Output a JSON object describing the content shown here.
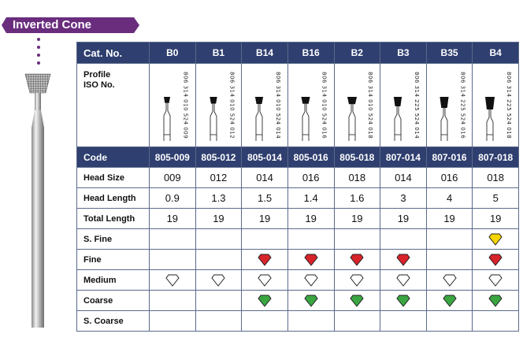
{
  "title": "Inverted Cone",
  "table": {
    "cat_label": "Cat. No.",
    "profile_label_1": "Profile",
    "profile_label_2": "ISO No.",
    "code_label": "Code",
    "columns": [
      {
        "cat": "B0",
        "iso": "806 314 010 524 009",
        "code": "805-009",
        "head_size": "009",
        "head_length": "0.9",
        "total_length": "19"
      },
      {
        "cat": "B1",
        "iso": "806 314 010 524 012",
        "code": "805-012",
        "head_size": "012",
        "head_length": "1.3",
        "total_length": "19"
      },
      {
        "cat": "B14",
        "iso": "806 314 010 524 014",
        "code": "805-014",
        "head_size": "014",
        "head_length": "1.5",
        "total_length": "19"
      },
      {
        "cat": "B16",
        "iso": "806 314 010 524 016",
        "code": "805-016",
        "head_size": "016",
        "head_length": "1.4",
        "total_length": "19"
      },
      {
        "cat": "B2",
        "iso": "806 314 010 524 018",
        "code": "805-018",
        "head_size": "018",
        "head_length": "1.6",
        "total_length": "19"
      },
      {
        "cat": "B3",
        "iso": "806 314 225 524 014",
        "code": "807-014",
        "head_size": "014",
        "head_length": "3",
        "total_length": "19"
      },
      {
        "cat": "B35",
        "iso": "806 314 225 524 016",
        "code": "807-016",
        "head_size": "016",
        "head_length": "4",
        "total_length": "19"
      },
      {
        "cat": "B4",
        "iso": "806 314 225 524 018",
        "code": "807-018",
        "head_size": "018",
        "head_length": "5",
        "total_length": "19"
      }
    ],
    "rows": {
      "head_size": "Head Size",
      "head_length": "Head Length",
      "total_length": "Total Length"
    },
    "grit_rows": [
      {
        "label": "S. Fine",
        "color": "#f5d400",
        "cols": [
          false,
          false,
          false,
          false,
          false,
          false,
          false,
          true
        ]
      },
      {
        "label": "Fine",
        "color": "#d8232a",
        "cols": [
          false,
          false,
          true,
          true,
          true,
          true,
          false,
          true
        ]
      },
      {
        "label": "Medium",
        "color": "#ffffff",
        "cols": [
          true,
          true,
          true,
          true,
          true,
          true,
          true,
          true
        ]
      },
      {
        "label": "Coarse",
        "color": "#3aa642",
        "cols": [
          false,
          false,
          true,
          true,
          true,
          true,
          true,
          true
        ]
      },
      {
        "label": "S. Coarse",
        "color": "#111111",
        "cols": [
          false,
          false,
          false,
          false,
          false,
          false,
          false,
          false
        ]
      }
    ]
  }
}
